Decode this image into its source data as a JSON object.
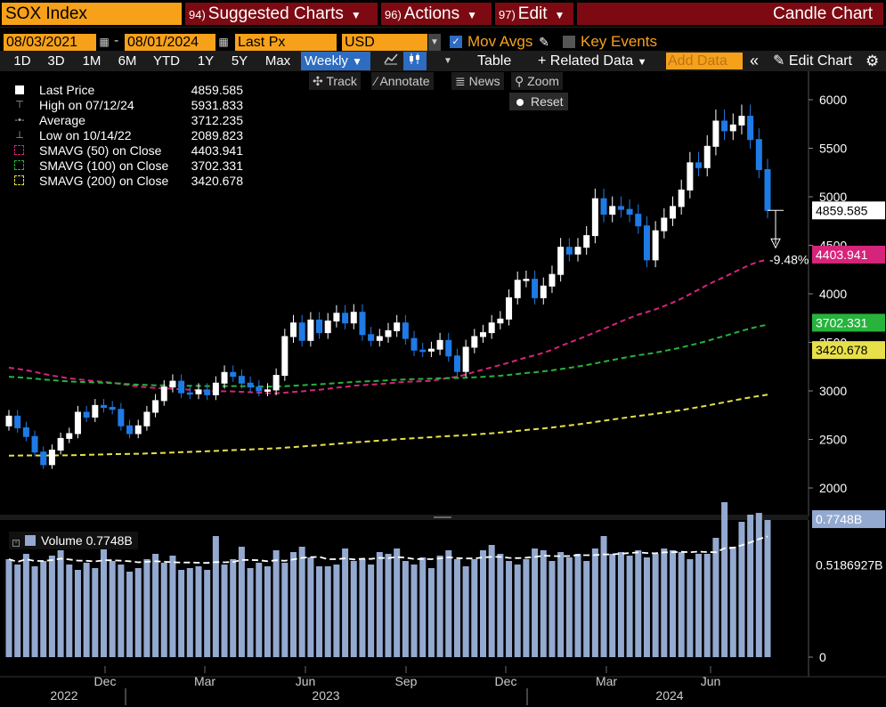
{
  "topbar": {
    "ticker": "SOX Index",
    "suggested": {
      "num": "94)",
      "label": "Suggested Charts"
    },
    "actions": {
      "num": "96)",
      "label": "Actions"
    },
    "edit": {
      "num": "97)",
      "label": "Edit"
    },
    "title": "Candle Chart"
  },
  "controls": {
    "start_date": "08/03/2021",
    "end_date": "08/01/2024",
    "field": "Last Px",
    "currency": "USD",
    "mov_avgs_label": "Mov Avgs",
    "mov_avgs_checked": true,
    "key_events_label": "Key Events",
    "key_events_checked": false
  },
  "periods": [
    "1D",
    "3D",
    "1M",
    "6M",
    "YTD",
    "1Y",
    "5Y",
    "Max"
  ],
  "frequency": "Weekly",
  "toolbar": {
    "table": "Table",
    "related": "Related Data",
    "add_data": "Add Data",
    "edit_chart": "Edit Chart"
  },
  "chart_tools": {
    "track": "Track",
    "annotate": "Annotate",
    "news": "News",
    "zoom": "Zoom",
    "reset": "Reset"
  },
  "legend": [
    {
      "label": "Last Price",
      "value": "4859.585"
    },
    {
      "label": "High on 07/12/24",
      "value": "5931.833"
    },
    {
      "label": "Average",
      "value": "3712.235"
    },
    {
      "label": "Low on 10/14/22",
      "value": "2089.823"
    },
    {
      "label": "SMAVG (50)  on Close",
      "value": "4403.941"
    },
    {
      "label": "SMAVG (100)  on Close",
      "value": "3702.331"
    },
    {
      "label": "SMAVG (200)  on Close",
      "value": "3420.678"
    }
  ],
  "volume_legend": {
    "label": "Volume",
    "value": "0.7748B"
  },
  "colors": {
    "orange": "#f7a11a",
    "menu_red": "#7d0a12",
    "blue": "#2d6cc0",
    "candle_down": "#1e7be6",
    "sma50": "#d6247a",
    "sma100": "#27b33c",
    "sma200": "#e8e04a",
    "volume_bar": "#94a9cf"
  },
  "chart_data": {
    "type": "candlestick",
    "title": "SOX Index",
    "frequency": "Weekly",
    "price_axis": {
      "ticks": [
        2000,
        2500,
        3000,
        3500,
        4000,
        4500,
        5000,
        5500,
        6000
      ],
      "range": [
        1800,
        6200
      ]
    },
    "volume_axis": {
      "ticks": [
        0
      ],
      "range_billions": [
        0,
        0.9
      ]
    },
    "x_month_labels": [
      "Dec",
      "Mar",
      "Jun",
      "Sep",
      "Dec",
      "Mar",
      "Jun"
    ],
    "x_year_labels": [
      "2022",
      "2023",
      "2024"
    ],
    "price_tags": {
      "last": "4859.585",
      "sma50": "4403.941",
      "sma100": "3702.331",
      "sma200": "3420.678",
      "volume": "0.7748B",
      "volume_avg": "0.5186927B"
    },
    "drawdown_label": "-9.48%",
    "close": [
      2740,
      2620,
      2530,
      2370,
      2240,
      2390,
      2510,
      2560,
      2780,
      2730,
      2850,
      2830,
      2810,
      2640,
      2560,
      2640,
      2780,
      2900,
      3040,
      3100,
      2980,
      2970,
      3010,
      2960,
      3080,
      3190,
      3150,
      3080,
      3040,
      3000,
      3010,
      3160,
      3560,
      3700,
      3520,
      3730,
      3600,
      3720,
      3800,
      3700,
      3810,
      3580,
      3520,
      3560,
      3620,
      3700,
      3540,
      3420,
      3410,
      3430,
      3520,
      3360,
      3200,
      3450,
      3560,
      3600,
      3700,
      3740,
      3960,
      4140,
      4150,
      3960,
      4080,
      4200,
      4480,
      4410,
      4480,
      4600,
      4980,
      4820,
      4900,
      4870,
      4820,
      4700,
      4350,
      4650,
      4780,
      4900,
      5070,
      5350,
      5300,
      5520,
      5780,
      5680,
      5740,
      5830,
      5590,
      5280,
      4860
    ],
    "volume": [
      0.55,
      0.52,
      0.58,
      0.51,
      0.54,
      0.57,
      0.6,
      0.52,
      0.49,
      0.53,
      0.5,
      0.62,
      0.54,
      0.52,
      0.48,
      0.5,
      0.55,
      0.58,
      0.53,
      0.57,
      0.49,
      0.5,
      0.51,
      0.49,
      0.68,
      0.52,
      0.55,
      0.62,
      0.5,
      0.53,
      0.51,
      0.6,
      0.53,
      0.59,
      0.62,
      0.56,
      0.51,
      0.51,
      0.52,
      0.61,
      0.54,
      0.55,
      0.52,
      0.59,
      0.58,
      0.61,
      0.54,
      0.52,
      0.56,
      0.5,
      0.57,
      0.6,
      0.55,
      0.51,
      0.55,
      0.6,
      0.63,
      0.58,
      0.54,
      0.52,
      0.55,
      0.61,
      0.6,
      0.54,
      0.59,
      0.56,
      0.58,
      0.54,
      0.61,
      0.68,
      0.58,
      0.59,
      0.57,
      0.6,
      0.56,
      0.58,
      0.61,
      0.6,
      0.59,
      0.55,
      0.58,
      0.58,
      0.67,
      0.87,
      0.62,
      0.76,
      0.8,
      0.81,
      0.77
    ]
  }
}
